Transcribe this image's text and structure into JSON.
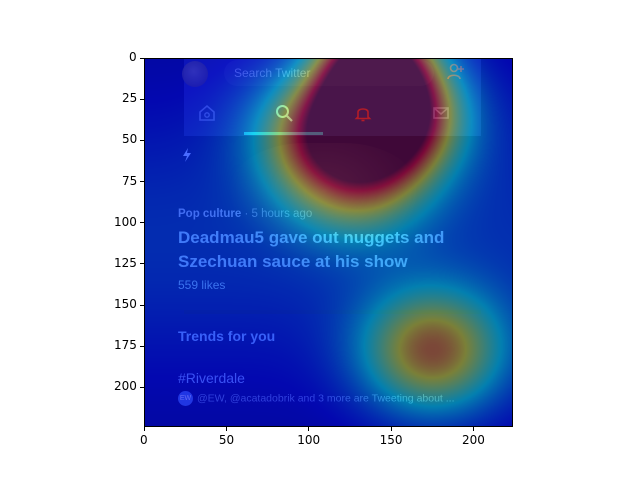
{
  "screen": {
    "search_placeholder": "Search Twitter",
    "tabs": [
      {
        "name": "home",
        "icon": "home-icon"
      },
      {
        "name": "search",
        "icon": "search-icon"
      },
      {
        "name": "notifications",
        "icon": "bell-icon"
      },
      {
        "name": "messages",
        "icon": "mail-icon"
      }
    ],
    "add_user_icon": "add-user-icon",
    "flash_icon": "lightning-icon",
    "story": {
      "category": "Pop culture",
      "separator": " · ",
      "time": "5 hours ago",
      "headline": "Deadmau5 gave out nuggets and Szechuan sauce at his show",
      "likes": "559 likes"
    },
    "trends": {
      "title": "Trends for you",
      "hashtag": "#Riverdale",
      "badge": "EW",
      "subtext": "@EW, @acatadobrik and 3 more are Tweeting about ..."
    }
  },
  "overlay": {
    "type": "attention-heatmap",
    "colormap": "jet",
    "hotspots": [
      {
        "x": 140,
        "y": 10,
        "intensity": 1.0
      },
      {
        "x": 150,
        "y": 35,
        "intensity": 0.75
      },
      {
        "x": 110,
        "y": 45,
        "intensity": 0.55
      },
      {
        "x": 175,
        "y": 178,
        "intensity": 0.6
      },
      {
        "x": 130,
        "y": 75,
        "intensity": 0.35
      }
    ]
  },
  "axes": {
    "x_ticks": [
      "0",
      "50",
      "100",
      "150",
      "200"
    ],
    "y_ticks": [
      "0",
      "25",
      "50",
      "75",
      "100",
      "125",
      "150",
      "175",
      "200"
    ],
    "xlim": [
      0,
      224
    ],
    "ylim": [
      224,
      0
    ],
    "colors": {
      "background_deep": "#07106a",
      "accent_blue": "#2fb0e8",
      "icon_red": "#e0364a"
    }
  }
}
